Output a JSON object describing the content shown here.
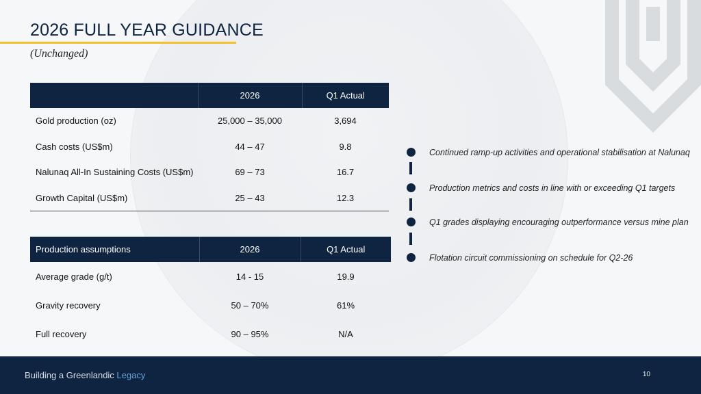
{
  "header": {
    "title": "2026 FULL YEAR GUIDANCE",
    "subtitle": "(Unchanged)"
  },
  "guidance_table": {
    "columns": [
      "",
      "2026",
      "Q1 Actual"
    ],
    "rows": [
      {
        "label": "Gold production (oz)",
        "target": "25,000 – 35,000",
        "actual": "3,694"
      },
      {
        "label": "Cash costs (US$m)",
        "target": "44 – 47",
        "actual": "9.8"
      },
      {
        "label": "Nalunaq All-In Sustaining Costs (US$m)",
        "target": "69 – 73",
        "actual": "16.7"
      },
      {
        "label": "Growth Capital (US$m)",
        "target": "25 – 43",
        "actual": "12.3"
      }
    ]
  },
  "assumptions_table": {
    "columns": [
      "Production assumptions",
      "2026",
      "Q1 Actual"
    ],
    "rows": [
      {
        "label": "Average grade (g/t)",
        "target": "14 - 15",
        "actual": "19.9"
      },
      {
        "label": "Gravity recovery",
        "target": "50 – 70%",
        "actual": "61%"
      },
      {
        "label": "Full recovery",
        "target": "90 – 95%",
        "actual": "N/A"
      }
    ]
  },
  "bullets": [
    "Continued ramp-up activities and operational stabilisation at Nalunaq",
    "Production metrics and costs in line with or exceeding Q1 targets",
    "Q1 grades displaying encouraging outperformance versus mine plan",
    "Flotation circuit commissioning on schedule for Q2-26"
  ],
  "footer": {
    "text_main": "Building a Greenlandic ",
    "text_accent": "Legacy",
    "page_number": "10"
  },
  "colors": {
    "navy": "#0f2440",
    "gold": "#f1c22c",
    "accent_blue": "#63a3d9"
  }
}
